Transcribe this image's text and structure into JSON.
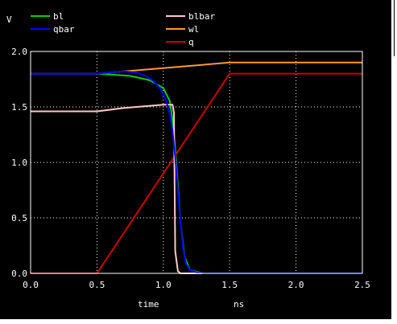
{
  "chart_data": {
    "type": "line",
    "ylabel_unit": "V",
    "xlabel": "time",
    "xunit": "ns",
    "xlim": [
      0.0,
      2.5
    ],
    "ylim": [
      0.0,
      2.0
    ],
    "xticks": [
      "0.0",
      "0.5",
      "1.0",
      "1.5",
      "2.0",
      "2.5"
    ],
    "yticks": [
      "0.0",
      "0.5",
      "1.0",
      "1.5",
      "2.0"
    ],
    "grid": true,
    "legend_position": "top",
    "series": [
      {
        "name": "bl",
        "color": "#00d000",
        "x": [
          0.0,
          0.5,
          0.75,
          0.9,
          1.0,
          1.05,
          1.07,
          1.09,
          1.11,
          1.13,
          1.16,
          1.2,
          1.3,
          2.5
        ],
        "y": [
          1.8,
          1.8,
          1.78,
          1.74,
          1.67,
          1.55,
          1.38,
          1.12,
          0.8,
          0.45,
          0.15,
          0.03,
          0.0,
          0.0
        ]
      },
      {
        "name": "blbar",
        "color": "#ffc8c8",
        "x": [
          0.0,
          0.5,
          0.7,
          0.9,
          1.0,
          1.04,
          1.07,
          1.08,
          1.09,
          1.11,
          1.13,
          1.5,
          2.5
        ],
        "y": [
          1.46,
          1.46,
          1.49,
          1.51,
          1.52,
          1.52,
          1.52,
          1.45,
          0.2,
          0.02,
          0.0,
          0.0,
          0.0
        ]
      },
      {
        "name": "qbar",
        "color": "#0000ff",
        "x": [
          0.0,
          0.5,
          0.6,
          0.7,
          0.8,
          0.87,
          0.93,
          0.98,
          1.02,
          1.05,
          1.07,
          1.09,
          1.11,
          1.13,
          1.15,
          1.17,
          1.2,
          1.25,
          1.3,
          2.5
        ],
        "y": [
          1.8,
          1.8,
          1.81,
          1.82,
          1.81,
          1.78,
          1.73,
          1.66,
          1.56,
          1.43,
          1.28,
          1.05,
          0.75,
          0.45,
          0.22,
          0.09,
          0.03,
          0.01,
          0.0,
          0.0
        ]
      },
      {
        "name": "wl",
        "color": "#ff9933",
        "x": [
          0.0,
          0.5,
          1.5,
          2.5
        ],
        "y": [
          1.8,
          1.8,
          1.9,
          1.9
        ]
      },
      {
        "name": "q",
        "color": "#cc0000",
        "x": [
          0.0,
          0.5,
          1.5,
          2.5
        ],
        "y": [
          0.0,
          0.0,
          1.8,
          1.8
        ]
      }
    ]
  }
}
